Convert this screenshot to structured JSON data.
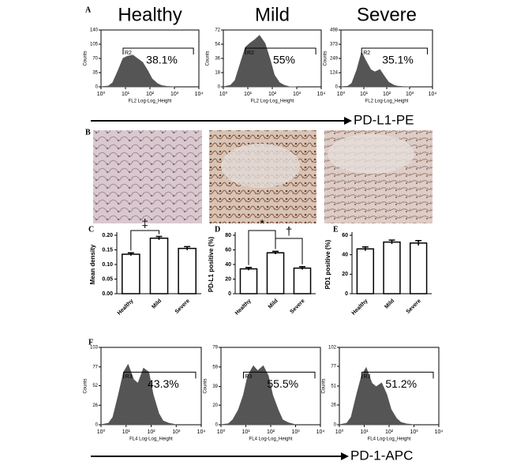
{
  "panel_letters": [
    "A",
    "B",
    "C",
    "D",
    "E",
    "F"
  ],
  "arrow_labels": [
    "PD-L1-PE",
    "PD-1-APC"
  ],
  "chart_data": [
    {
      "type": "area",
      "title": "Healthy",
      "ylabel": "Counts",
      "xlabel": "FL2 Log-Log_Height",
      "xscale": "log",
      "xlim": [
        1,
        10000
      ],
      "xticks": [
        {
          "value": 1,
          "label": "10⁰"
        },
        {
          "value": 10,
          "label": "10¹"
        },
        {
          "value": 100,
          "label": "10²"
        },
        {
          "value": 1000,
          "label": "10³"
        },
        {
          "value": 10000,
          "label": "10⁴"
        }
      ],
      "ylim": [
        0,
        140
      ],
      "yticks": [
        0,
        35,
        70,
        105,
        140
      ],
      "color": "#555555",
      "gate": "R2",
      "gate_range": [
        8,
        6000
      ],
      "annotation": "38.1%",
      "x": [
        1,
        2,
        3,
        5,
        8,
        12,
        20,
        30,
        50,
        80,
        120,
        200,
        300,
        500,
        1000
      ],
      "values": [
        0,
        2,
        10,
        40,
        70,
        75,
        78,
        70,
        60,
        40,
        20,
        8,
        3,
        1,
        0
      ]
    },
    {
      "type": "area",
      "title": "Mild",
      "ylabel": "Counts",
      "xlabel": "FL2 Log-Log_Height",
      "xscale": "log",
      "xlim": [
        1,
        10000
      ],
      "xticks": [
        {
          "value": 1,
          "label": "10⁰"
        },
        {
          "value": 10,
          "label": "10¹"
        },
        {
          "value": 100,
          "label": "10²"
        },
        {
          "value": 1000,
          "label": "10³"
        },
        {
          "value": 10000,
          "label": "10⁴"
        }
      ],
      "ylim": [
        0,
        72
      ],
      "yticks": [
        0,
        18,
        36,
        54,
        72
      ],
      "color": "#555555",
      "gate": "R2",
      "gate_range": [
        8,
        6000
      ],
      "annotation": "55%",
      "x": [
        1,
        2,
        3,
        5,
        8,
        12,
        20,
        30,
        50,
        80,
        120,
        200,
        300,
        500,
        1000
      ],
      "values": [
        0,
        2,
        8,
        30,
        50,
        55,
        60,
        65,
        55,
        35,
        15,
        5,
        2,
        0,
        0
      ]
    },
    {
      "type": "area",
      "title": "Severe",
      "ylabel": "Counts",
      "xlabel": "FL2 Log-Log_Height",
      "xscale": "log",
      "xlim": [
        1,
        10000
      ],
      "xticks": [
        {
          "value": 1,
          "label": "10⁰"
        },
        {
          "value": 10,
          "label": "10¹"
        },
        {
          "value": 100,
          "label": "10²"
        },
        {
          "value": 1000,
          "label": "10³"
        },
        {
          "value": 10000,
          "label": "10⁴"
        }
      ],
      "ylim": [
        0,
        498
      ],
      "yticks": [
        0,
        124,
        249,
        373,
        498
      ],
      "color": "#555555",
      "gate": "R2",
      "gate_range": [
        8,
        6000
      ],
      "annotation": "35.1%",
      "x": [
        1,
        2,
        3,
        5,
        8,
        12,
        20,
        30,
        50,
        80,
        120,
        200,
        300,
        500,
        1000
      ],
      "values": [
        0,
        5,
        30,
        150,
        300,
        230,
        150,
        130,
        150,
        90,
        40,
        15,
        5,
        2,
        0
      ]
    },
    {
      "type": "bar",
      "ylabel": "Mean density",
      "categories": [
        "Healthy",
        "Mild",
        "Severe"
      ],
      "values": [
        0.135,
        0.19,
        0.155
      ],
      "errors": [
        0.005,
        0.006,
        0.006
      ],
      "ylim": [
        0,
        0.2
      ],
      "yticks": [
        {
          "value": 0,
          "label": "0.00"
        },
        {
          "value": 0.05,
          "label": "0.05"
        },
        {
          "value": 0.1,
          "label": "0.10"
        },
        {
          "value": 0.15,
          "label": "0.15"
        },
        {
          "value": 0.2,
          "label": "0.20"
        }
      ],
      "significance": [
        {
          "text": "‡",
          "between": [
            0,
            1
          ]
        }
      ]
    },
    {
      "type": "bar",
      "ylabel": "PD-L1 positive (%)",
      "categories": [
        "Healthy",
        "Mild",
        "Severe"
      ],
      "values": [
        34,
        56,
        35
      ],
      "errors": [
        2,
        2,
        2
      ],
      "ylim": [
        0,
        80
      ],
      "yticks": [
        0,
        20,
        40,
        60,
        80
      ],
      "significance": [
        {
          "text": "*",
          "between": [
            0,
            1
          ]
        },
        {
          "text": "†",
          "between": [
            1,
            2
          ]
        }
      ]
    },
    {
      "type": "bar",
      "ylabel": "PD1 positive (%)",
      "categories": [
        "Healthy",
        "Mild",
        "Severe"
      ],
      "values": [
        46,
        53,
        52
      ],
      "errors": [
        2,
        2,
        2.5
      ],
      "ylim": [
        0,
        60
      ],
      "yticks": [
        0,
        20,
        40,
        60
      ],
      "significance": []
    },
    {
      "type": "area",
      "ylabel": "Counts",
      "xlabel": "FL4 Log-Log_Height",
      "xscale": "log",
      "xlim": [
        1,
        10000
      ],
      "xticks": [
        {
          "value": 1,
          "label": "10⁰"
        },
        {
          "value": 10,
          "label": "10¹"
        },
        {
          "value": 100,
          "label": "10²"
        },
        {
          "value": 1000,
          "label": "10³"
        },
        {
          "value": 10000,
          "label": "10⁴"
        }
      ],
      "ylim": [
        0,
        103
      ],
      "yticks": [
        0,
        26,
        52,
        77,
        103
      ],
      "color": "#555555",
      "gate": "R3",
      "gate_range": [
        8,
        6000
      ],
      "annotation": "43.3%",
      "x": [
        1,
        2,
        3,
        5,
        8,
        12,
        20,
        30,
        50,
        80,
        120,
        200,
        300,
        500,
        1000
      ],
      "values": [
        0,
        2,
        10,
        40,
        70,
        80,
        60,
        55,
        75,
        70,
        40,
        15,
        5,
        2,
        0
      ]
    },
    {
      "type": "area",
      "ylabel": "Counts",
      "xlabel": "FL4 Log-Log_Height",
      "xscale": "log",
      "xlim": [
        1,
        10000
      ],
      "xticks": [
        {
          "value": 1,
          "label": "10⁰"
        },
        {
          "value": 10,
          "label": "10¹"
        },
        {
          "value": 100,
          "label": "10²"
        },
        {
          "value": 1000,
          "label": "10³"
        },
        {
          "value": 10000,
          "label": "10⁴"
        }
      ],
      "ylim": [
        0,
        79
      ],
      "yticks": [
        0,
        20,
        39,
        59,
        79
      ],
      "color": "#555555",
      "gate": "R3",
      "gate_range": [
        8,
        6000
      ],
      "annotation": "55.5%",
      "x": [
        1,
        2,
        3,
        5,
        8,
        12,
        20,
        30,
        50,
        80,
        120,
        200,
        300,
        500,
        1000
      ],
      "values": [
        0,
        1,
        5,
        15,
        30,
        50,
        60,
        55,
        60,
        50,
        30,
        15,
        5,
        2,
        0
      ]
    },
    {
      "type": "area",
      "ylabel": "Counts",
      "xlabel": "FL4 Log-Log_Height",
      "xscale": "log",
      "xlim": [
        1,
        10000
      ],
      "xticks": [
        {
          "value": 1,
          "label": "10⁰"
        },
        {
          "value": 10,
          "label": "10¹"
        },
        {
          "value": 100,
          "label": "10²"
        },
        {
          "value": 1000,
          "label": "10³"
        },
        {
          "value": 10000,
          "label": "10⁴"
        }
      ],
      "ylim": [
        0,
        102
      ],
      "yticks": [
        0,
        26,
        51,
        77,
        102
      ],
      "color": "#555555",
      "gate": "R3",
      "gate_range": [
        8,
        6000
      ],
      "annotation": "51.2%",
      "x": [
        1,
        2,
        3,
        5,
        8,
        12,
        20,
        30,
        50,
        80,
        120,
        200,
        300,
        500,
        1000
      ],
      "values": [
        0,
        2,
        10,
        40,
        65,
        75,
        55,
        50,
        55,
        40,
        20,
        8,
        3,
        1,
        0
      ]
    }
  ]
}
